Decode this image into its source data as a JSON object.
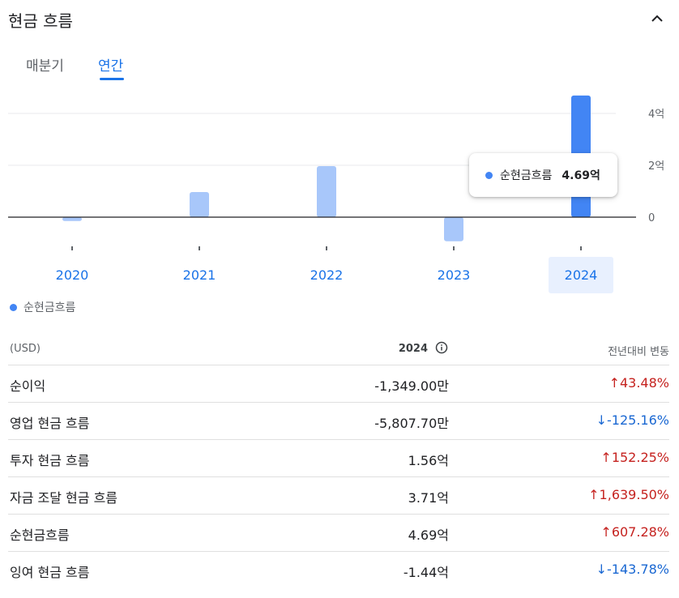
{
  "header": {
    "title": "현금 흐름"
  },
  "tabs": [
    {
      "label": "매분기"
    },
    {
      "label": "연간"
    }
  ],
  "chart_data": {
    "type": "bar",
    "categories": [
      "2020",
      "2021",
      "2022",
      "2023",
      "2024"
    ],
    "series": [
      {
        "name": "순현금흐름",
        "values": [
          -0.15,
          0.97,
          1.97,
          -0.93,
          4.69
        ]
      }
    ],
    "y_unit": "억",
    "y_ticks": [
      "4억",
      "2억",
      "0"
    ],
    "ylim": [
      -1.2,
      5.0
    ],
    "grid": true,
    "selected_category": "2024",
    "colors": {
      "selected": "#4285f4",
      "other": "#a8c7fa"
    }
  },
  "tooltip": {
    "label": "순현금흐름",
    "value": "4.69억"
  },
  "legend": {
    "label": "순현금흐름"
  },
  "table": {
    "headers": {
      "currency": "(USD)",
      "year": "2024",
      "change": "전년대비 변동"
    },
    "rows": [
      {
        "name": "순이익",
        "value": "-1,349.00만",
        "change": "43.48%",
        "dir": "up"
      },
      {
        "name": "영업 현금 흐름",
        "value": "-5,807.70만",
        "change": "-125.16%",
        "dir": "down"
      },
      {
        "name": "투자 현금 흐름",
        "value": "1.56억",
        "change": "152.25%",
        "dir": "up"
      },
      {
        "name": "자금 조달 현금 흐름",
        "value": "3.71억",
        "change": "1,639.50%",
        "dir": "up"
      },
      {
        "name": "순현금흐름",
        "value": "4.69억",
        "change": "607.28%",
        "dir": "up"
      },
      {
        "name": "잉여 현금 흐름",
        "value": "-1.44억",
        "change": "-143.78%",
        "dir": "down"
      }
    ]
  },
  "icons": {
    "collapse": "chevron-up-icon",
    "info": "info-icon",
    "up": "arrow-up-icon",
    "down": "arrow-down-icon"
  }
}
